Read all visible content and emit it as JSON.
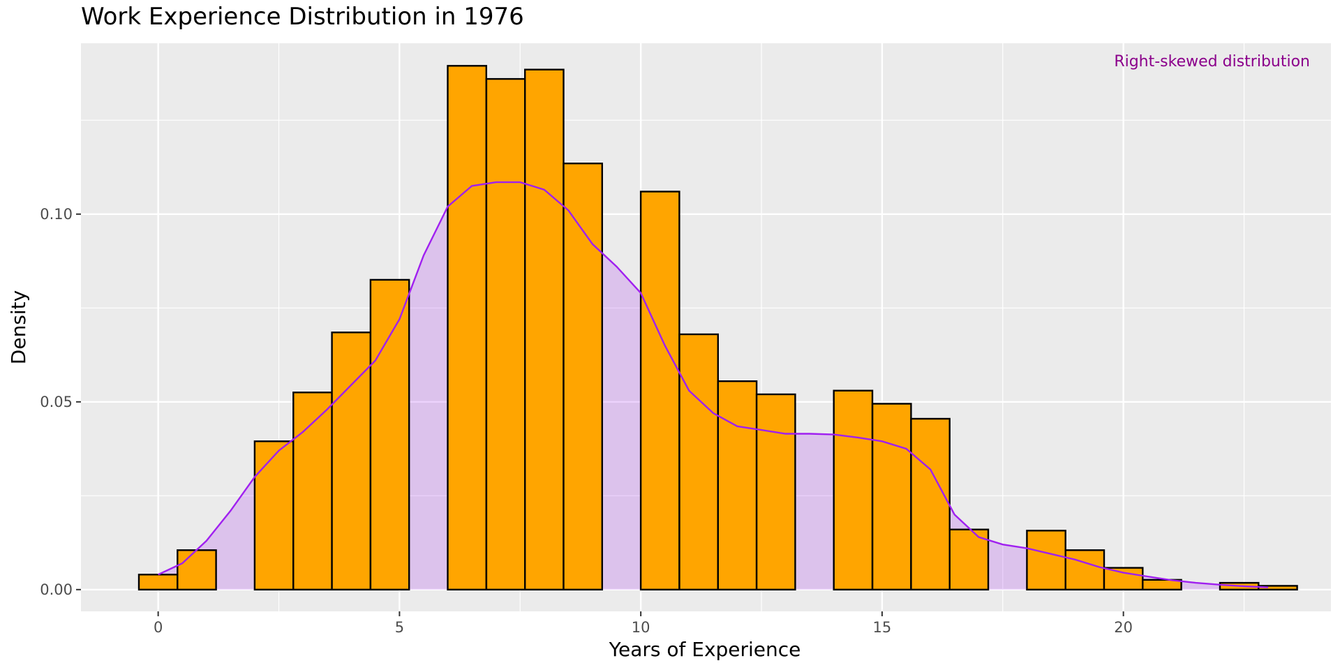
{
  "chart_data": {
    "type": "bar",
    "title": "Work Experience Distribution in 1976",
    "xlabel": "Years of Experience",
    "ylabel": "Density",
    "xlim": [
      -1.6,
      24.3
    ],
    "ylim": [
      -0.0058,
      0.1455
    ],
    "x_ticks": [
      0,
      5,
      10,
      15,
      20
    ],
    "x_tick_labels": [
      "0",
      "5",
      "10",
      "15",
      "20"
    ],
    "x_minor_ticks": [
      2.5,
      7.5,
      12.5,
      17.5,
      22.5
    ],
    "y_ticks": [
      0.0,
      0.05,
      0.1
    ],
    "y_tick_labels": [
      "0.00",
      "0.05",
      "0.10"
    ],
    "y_minor_ticks": [
      0.025,
      0.075,
      0.125
    ],
    "grid": true,
    "annotation": {
      "text": "Right-skewed distribution",
      "x": 22.9,
      "y": 0.1405,
      "color": "#8B008B"
    },
    "histogram": {
      "fill": "#FFA500",
      "edge": "#000000",
      "bins": [
        {
          "x0": -0.4,
          "x1": 0.4,
          "value": 0.004
        },
        {
          "x0": 0.4,
          "x1": 1.2,
          "value": 0.0105
        },
        {
          "x0": 1.2,
          "x1": 2.0,
          "value": 0.0
        },
        {
          "x0": 2.0,
          "x1": 2.8,
          "value": 0.0395
        },
        {
          "x0": 2.8,
          "x1": 3.6,
          "value": 0.0525
        },
        {
          "x0": 3.6,
          "x1": 4.4,
          "value": 0.0685
        },
        {
          "x0": 4.4,
          "x1": 5.2,
          "value": 0.0825
        },
        {
          "x0": 5.2,
          "x1": 6.0,
          "value": 0.0
        },
        {
          "x0": 6.0,
          "x1": 6.8,
          "value": 0.1395
        },
        {
          "x0": 6.8,
          "x1": 7.6,
          "value": 0.136
        },
        {
          "x0": 7.6,
          "x1": 8.4,
          "value": 0.1385
        },
        {
          "x0": 8.4,
          "x1": 9.2,
          "value": 0.1135
        },
        {
          "x0": 9.2,
          "x1": 10.0,
          "value": 0.0
        },
        {
          "x0": 10.0,
          "x1": 10.8,
          "value": 0.106
        },
        {
          "x0": 10.8,
          "x1": 11.6,
          "value": 0.068
        },
        {
          "x0": 11.6,
          "x1": 12.4,
          "value": 0.0555
        },
        {
          "x0": 12.4,
          "x1": 13.2,
          "value": 0.052
        },
        {
          "x0": 13.2,
          "x1": 14.0,
          "value": 0.0
        },
        {
          "x0": 14.0,
          "x1": 14.8,
          "value": 0.053
        },
        {
          "x0": 14.8,
          "x1": 15.6,
          "value": 0.0495
        },
        {
          "x0": 15.6,
          "x1": 16.4,
          "value": 0.0455
        },
        {
          "x0": 16.4,
          "x1": 17.2,
          "value": 0.016
        },
        {
          "x0": 17.2,
          "x1": 18.0,
          "value": 0.0
        },
        {
          "x0": 18.0,
          "x1": 18.8,
          "value": 0.0157
        },
        {
          "x0": 18.8,
          "x1": 19.6,
          "value": 0.0105
        },
        {
          "x0": 19.6,
          "x1": 20.4,
          "value": 0.0058
        },
        {
          "x0": 20.4,
          "x1": 21.2,
          "value": 0.0026
        },
        {
          "x0": 21.2,
          "x1": 22.0,
          "value": 0.0
        },
        {
          "x0": 22.0,
          "x1": 22.8,
          "value": 0.0018
        },
        {
          "x0": 22.8,
          "x1": 23.6,
          "value": 0.001
        }
      ]
    },
    "density": {
      "line_color": "#A020F0",
      "fill_color": "#A020F0",
      "fill_opacity": 0.2,
      "x": [
        0,
        0.5,
        1,
        1.5,
        2,
        2.5,
        3,
        3.5,
        4,
        4.5,
        5,
        5.5,
        6,
        6.5,
        7,
        7.5,
        8,
        8.5,
        9,
        9.5,
        10,
        10.5,
        11,
        11.5,
        12,
        12.5,
        13,
        13.5,
        14,
        14.5,
        15,
        15.5,
        16,
        16.5,
        17,
        17.5,
        18,
        18.5,
        19,
        19.5,
        20,
        20.5,
        21,
        21.5,
        22,
        22.5,
        23
      ],
      "y": [
        0.004,
        0.007,
        0.013,
        0.021,
        0.03,
        0.037,
        0.042,
        0.048,
        0.0545,
        0.061,
        0.072,
        0.089,
        0.102,
        0.1075,
        0.1085,
        0.1085,
        0.1065,
        0.101,
        0.092,
        0.086,
        0.079,
        0.065,
        0.053,
        0.047,
        0.0435,
        0.0425,
        0.0415,
        0.0415,
        0.0413,
        0.0405,
        0.0395,
        0.0375,
        0.032,
        0.02,
        0.014,
        0.012,
        0.011,
        0.0095,
        0.008,
        0.006,
        0.0045,
        0.0035,
        0.0025,
        0.0018,
        0.0013,
        0.0009,
        0.0006
      ]
    }
  }
}
